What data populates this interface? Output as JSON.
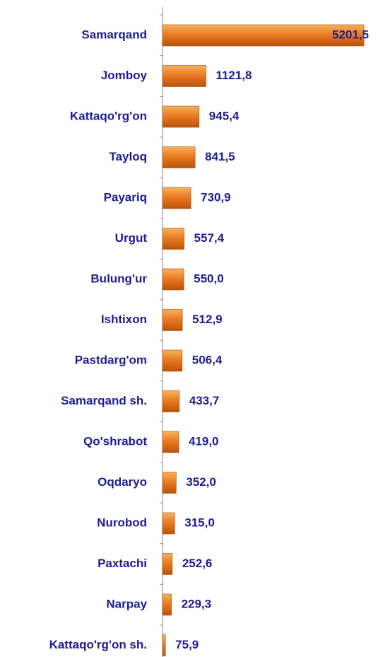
{
  "chart_data": {
    "type": "bar",
    "orientation": "horizontal",
    "color": "#e8771e",
    "categories": [
      "Samarqand",
      "Jomboy",
      "Kattaqo'rg'on",
      "Tayloq",
      "Payariq",
      "Urgut",
      "Bulung'ur",
      "Ishtixon",
      "Pastdarg'om",
      "Samarqand sh.",
      "Qo'shrabot",
      "Oqdaryo",
      "Nurobod",
      "Paxtachi",
      "Narpay",
      "Kattaqo'rg'on sh."
    ],
    "values": [
      5201.5,
      1121.8,
      945.4,
      841.5,
      730.9,
      557.4,
      550.0,
      512.9,
      506.4,
      433.7,
      419.0,
      352.0,
      315.0,
      252.6,
      229.3,
      75.9
    ],
    "value_labels": [
      "5201,5",
      "1121,8",
      "945,4",
      "841,5",
      "730,9",
      "557,4",
      "550,0",
      "512,9",
      "506,4",
      "433,7",
      "419,0",
      "352,0",
      "315,0",
      "252,6",
      "229,3",
      "75,9"
    ]
  }
}
